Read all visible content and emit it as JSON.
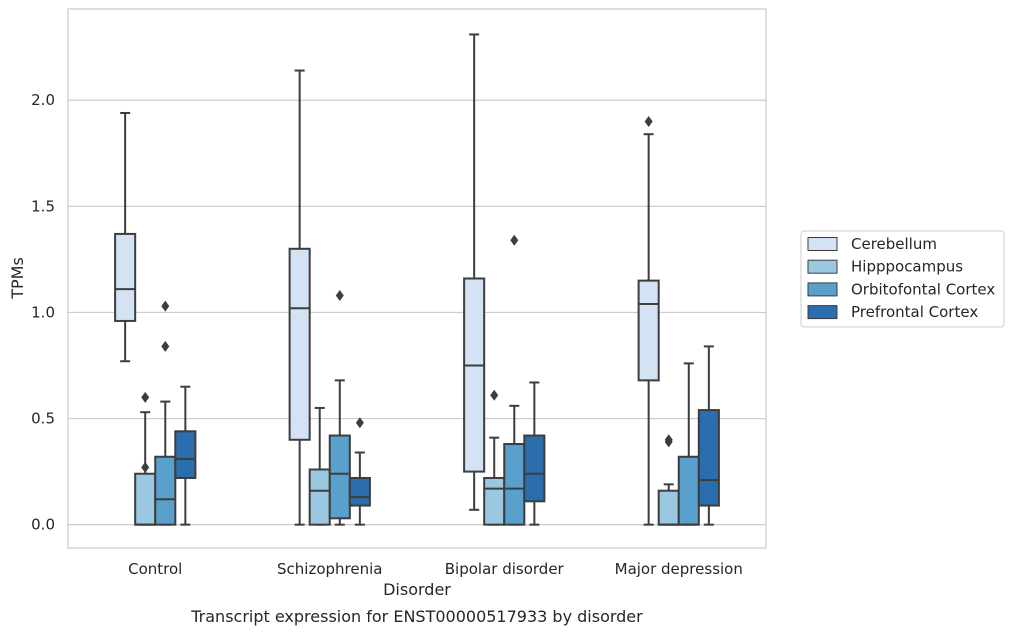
{
  "chart_data": {
    "type": "box",
    "title": "",
    "caption": "Transcript expression for ENST00000517933 by disorder",
    "xlabel": "Disorder",
    "ylabel": "TPMs",
    "ylim": [
      -0.11,
      2.43
    ],
    "yticks": [
      0.0,
      0.5,
      1.0,
      1.5,
      2.0
    ],
    "ytick_labels": [
      "0.0",
      "0.5",
      "1.0",
      "1.5",
      "2.0"
    ],
    "grid": "horizontal",
    "legend_position": "right",
    "categories": [
      "Control",
      "Schizophrenia",
      "Bipolar disorder",
      "Major depression"
    ],
    "series": [
      {
        "name": "Cerebellum",
        "color": "#d4e3f3",
        "boxes": [
          {
            "min": 0.77,
            "q1": 0.96,
            "median": 1.11,
            "q3": 1.37,
            "max": 1.94,
            "outliers": []
          },
          {
            "min": 0.0,
            "q1": 0.4,
            "median": 1.02,
            "q3": 1.3,
            "max": 2.14,
            "outliers": []
          },
          {
            "min": 0.07,
            "q1": 0.25,
            "median": 0.75,
            "q3": 1.16,
            "max": 2.31,
            "outliers": []
          },
          {
            "min": 0.0,
            "q1": 0.68,
            "median": 1.04,
            "q3": 1.15,
            "max": 1.84,
            "outliers": [
              1.9
            ]
          }
        ]
      },
      {
        "name": "Hipppocampus",
        "color": "#9ac8e0",
        "boxes": [
          {
            "min": 0.0,
            "q1": 0.0,
            "median": 0.0,
            "q3": 0.24,
            "max": 0.53,
            "outliers": [
              0.27,
              0.6
            ]
          },
          {
            "min": 0.0,
            "q1": 0.0,
            "median": 0.16,
            "q3": 0.26,
            "max": 0.55,
            "outliers": []
          },
          {
            "min": 0.0,
            "q1": 0.0,
            "median": 0.17,
            "q3": 0.22,
            "max": 0.41,
            "outliers": [
              0.61
            ]
          },
          {
            "min": 0.0,
            "q1": 0.0,
            "median": 0.0,
            "q3": 0.16,
            "max": 0.19,
            "outliers": [
              0.39,
              0.4
            ]
          }
        ]
      },
      {
        "name": "Orbitofontal Cortex",
        "color": "#5aa0cd",
        "boxes": [
          {
            "min": 0.0,
            "q1": 0.0,
            "median": 0.12,
            "q3": 0.32,
            "max": 0.58,
            "outliers": [
              0.84,
              1.03
            ]
          },
          {
            "min": 0.0,
            "q1": 0.03,
            "median": 0.24,
            "q3": 0.42,
            "max": 0.68,
            "outliers": [
              1.08
            ]
          },
          {
            "min": 0.0,
            "q1": 0.0,
            "median": 0.17,
            "q3": 0.38,
            "max": 0.56,
            "outliers": [
              1.34
            ]
          },
          {
            "min": 0.0,
            "q1": 0.0,
            "median": 0.0,
            "q3": 0.32,
            "max": 0.76,
            "outliers": []
          }
        ]
      },
      {
        "name": "Prefrontal Cortex",
        "color": "#2a6ead",
        "boxes": [
          {
            "min": 0.0,
            "q1": 0.22,
            "median": 0.31,
            "q3": 0.44,
            "max": 0.65,
            "outliers": []
          },
          {
            "min": 0.0,
            "q1": 0.09,
            "median": 0.13,
            "q3": 0.22,
            "max": 0.34,
            "outliers": [
              0.48
            ]
          },
          {
            "min": 0.0,
            "q1": 0.11,
            "median": 0.24,
            "q3": 0.42,
            "max": 0.67,
            "outliers": []
          },
          {
            "min": 0.0,
            "q1": 0.09,
            "median": 0.21,
            "q3": 0.54,
            "max": 0.84,
            "outliers": []
          }
        ]
      }
    ]
  }
}
